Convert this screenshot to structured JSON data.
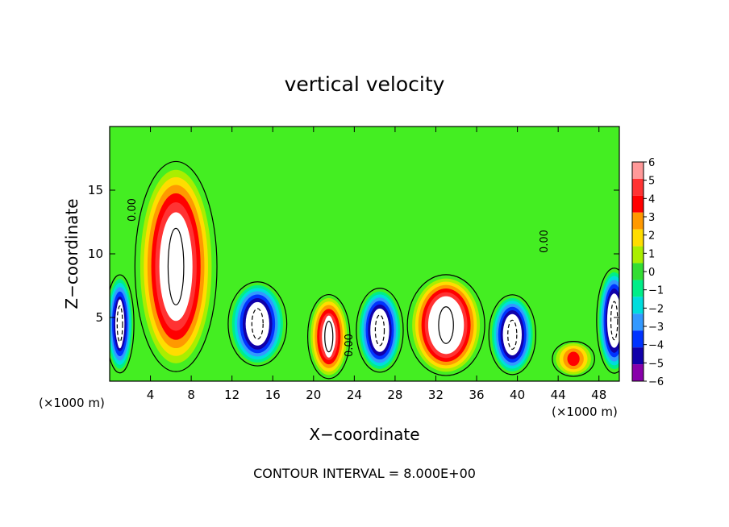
{
  "chart_data": {
    "type": "heatmap",
    "title": "vertical velocity",
    "xlabel": "X−coordinate",
    "ylabel": "Z−coordinate",
    "x_unit_left": "(×1000 m)",
    "x_unit_right": "(×1000 m)",
    "xlim": [
      0,
      50
    ],
    "ylim": [
      0,
      20
    ],
    "x_ticks": [
      4,
      8,
      12,
      16,
      20,
      24,
      28,
      32,
      36,
      40,
      44,
      48
    ],
    "y_ticks": [
      5,
      10,
      15
    ],
    "contour_labels": [
      "0.00",
      "0.00",
      "0.00"
    ],
    "footer": "CONTOUR INTERVAL = 8.000E+00",
    "colorbar": {
      "levels": [
        6,
        5,
        4,
        3,
        2,
        1,
        0,
        -1,
        -2,
        -3,
        -4,
        -5,
        -6
      ],
      "colors": [
        "#ff9999",
        "#ff3333",
        "#ff0000",
        "#ff9900",
        "#ffdd00",
        "#aaee00",
        "#33dd33",
        "#00ee88",
        "#00dddd",
        "#3399ff",
        "#0033ff",
        "#1100aa",
        "#8800aa"
      ]
    },
    "background_color": "#44ee22",
    "features": [
      {
        "kind": "updraft",
        "x": 6.5,
        "z_bottom": 1.5,
        "z_top": 16.5,
        "half_width": 3.5,
        "peak": 8
      },
      {
        "kind": "downdraft",
        "x": 14.5,
        "z_bottom": 1.5,
        "z_top": 7.5,
        "half_width": 2.5,
        "peak": -8
      },
      {
        "kind": "updraft",
        "x": 21.5,
        "z_bottom": 0.5,
        "z_top": 6.5,
        "half_width": 1.8,
        "peak": 7
      },
      {
        "kind": "downdraft",
        "x": 26.5,
        "z_bottom": 1.0,
        "z_top": 7.0,
        "half_width": 2.0,
        "peak": -8
      },
      {
        "kind": "updraft",
        "x": 33.0,
        "z_bottom": 0.8,
        "z_top": 8.0,
        "half_width": 3.3,
        "peak": 9
      },
      {
        "kind": "downdraft",
        "x": 39.5,
        "z_bottom": 0.8,
        "z_top": 6.5,
        "half_width": 2.0,
        "peak": -8
      },
      {
        "kind": "updraft",
        "x": 45.5,
        "z_bottom": 0.5,
        "z_top": 3.0,
        "half_width": 1.8,
        "peak": 4
      },
      {
        "kind": "downdraft",
        "x": 49.5,
        "z_bottom": 1.0,
        "z_top": 8.5,
        "half_width": 1.5,
        "peak": -8
      },
      {
        "kind": "downdraft",
        "x": 1.0,
        "z_bottom": 1.0,
        "z_top": 8.0,
        "half_width": 1.2,
        "peak": -7
      }
    ]
  }
}
